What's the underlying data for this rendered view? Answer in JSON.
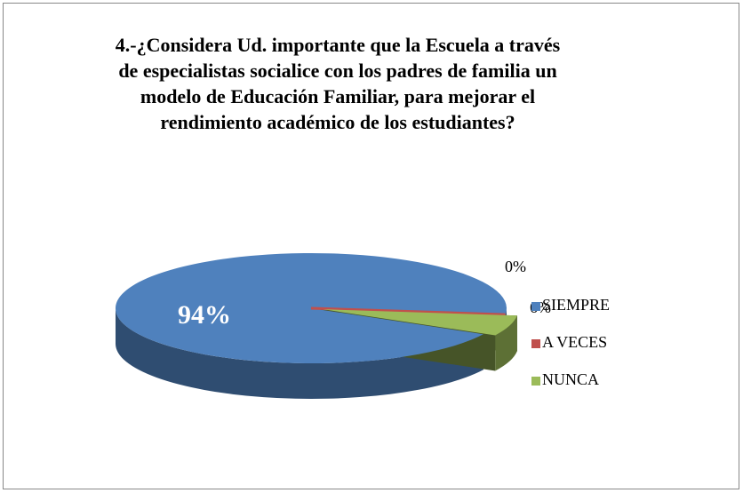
{
  "chart_data": {
    "type": "pie3d",
    "title": "4.-¿Considera Ud. importante que la Escuela a través de especialistas socialice con los padres de familia un modelo de Educación Familiar, para mejorar el rendimiento académico de los estudiantes?",
    "categories": [
      "SIEMPRE",
      "A VECES",
      "NUNCA"
    ],
    "values": [
      94,
      0,
      6
    ],
    "value_labels": [
      "94%",
      "0%",
      "6%"
    ],
    "colors": [
      "#4f81bd",
      "#c0504d",
      "#9bbb59"
    ],
    "legend": "right"
  }
}
